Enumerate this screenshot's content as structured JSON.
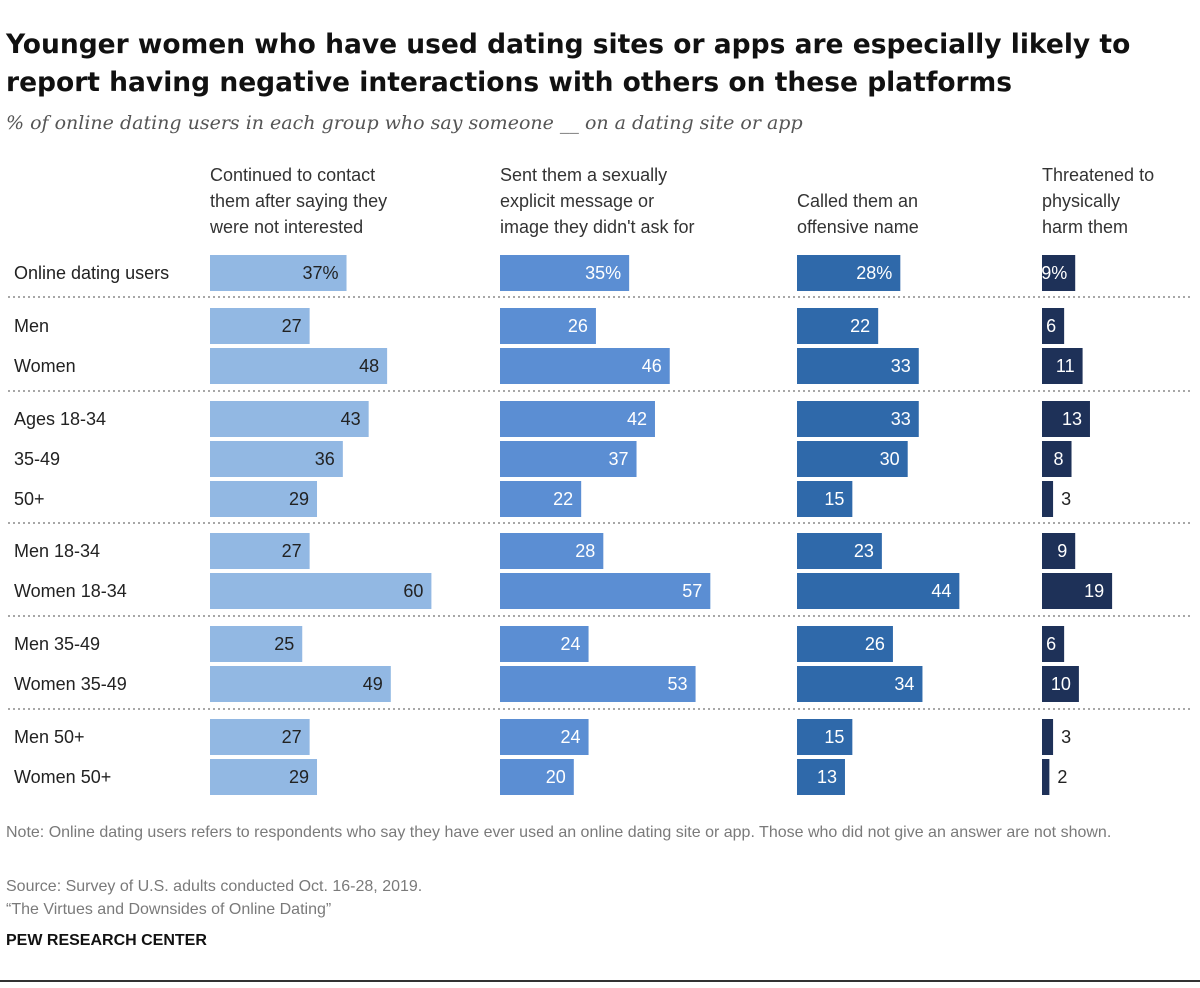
{
  "title": "Younger women who have used dating sites or apps are especially likely to report having negative interactions with others on these platforms",
  "subtitle": "% of online dating users in each group who say someone __ on a dating site or app",
  "chart_data": {
    "type": "bar",
    "orientation": "horizontal",
    "categories": [
      "Online dating users",
      "Men",
      "Women",
      "Ages 18-34",
      "35-49",
      "50+",
      "Men 18-34",
      "Women 18-34",
      "Men 35-49",
      "Women 35-49",
      "Men 50+",
      "Women 50+"
    ],
    "value_labels": [
      [
        "37%",
        "27",
        "48",
        "43",
        "36",
        "29",
        "27",
        "60",
        "25",
        "49",
        "27",
        "29"
      ],
      [
        "35%",
        "26",
        "46",
        "42",
        "37",
        "22",
        "28",
        "57",
        "24",
        "53",
        "24",
        "20"
      ],
      [
        "28%",
        "22",
        "33",
        "33",
        "30",
        "15",
        "23",
        "44",
        "26",
        "34",
        "15",
        "13"
      ],
      [
        "9%",
        "6",
        "11",
        "13",
        "8",
        "3",
        "9",
        "19",
        "6",
        "10",
        "3",
        "2"
      ]
    ],
    "series": [
      {
        "name": "Continued to contact them after saying they were not interested",
        "header_lines": [
          "Continued to contact",
          "them after saying they",
          "were not interested"
        ],
        "color": "#92b8e3",
        "values": [
          37,
          27,
          48,
          43,
          36,
          29,
          27,
          60,
          25,
          49,
          27,
          29
        ]
      },
      {
        "name": "Sent them a sexually explicit message or image they didn't ask for",
        "header_lines": [
          "Sent them a sexually",
          "explicit message or",
          "image they didn't ask for"
        ],
        "color": "#5b8ed3",
        "values": [
          35,
          26,
          46,
          42,
          37,
          22,
          28,
          57,
          24,
          53,
          24,
          20
        ]
      },
      {
        "name": "Called them an offensive name",
        "header_lines": [
          "Called them an",
          "offensive name"
        ],
        "color": "#2f69aa",
        "values": [
          28,
          22,
          33,
          33,
          30,
          15,
          23,
          44,
          26,
          34,
          15,
          13
        ]
      },
      {
        "name": "Threatened to physically harm them",
        "header_lines": [
          "Threatened to",
          "physically",
          "harm them"
        ],
        "color": "#1e3158",
        "values": [
          9,
          6,
          11,
          13,
          8,
          3,
          9,
          19,
          6,
          10,
          3,
          2
        ]
      }
    ],
    "groups": [
      [
        0
      ],
      [
        1,
        2
      ],
      [
        3,
        4,
        5
      ],
      [
        6,
        7
      ],
      [
        8,
        9
      ],
      [
        10,
        11
      ]
    ],
    "xlim": [
      0,
      100
    ],
    "grid": false,
    "legend": "none"
  },
  "notes": {
    "note": "Note: Online dating users refers to respondents who say they have ever used an online dating site or app. Those who did not give an answer are not shown.",
    "source": "Source: Survey of U.S. adults conducted Oct. 16-28, 2019.",
    "report": "“The Virtues and Downsides of Online Dating”"
  },
  "brand": "PEW RESEARCH CENTER"
}
